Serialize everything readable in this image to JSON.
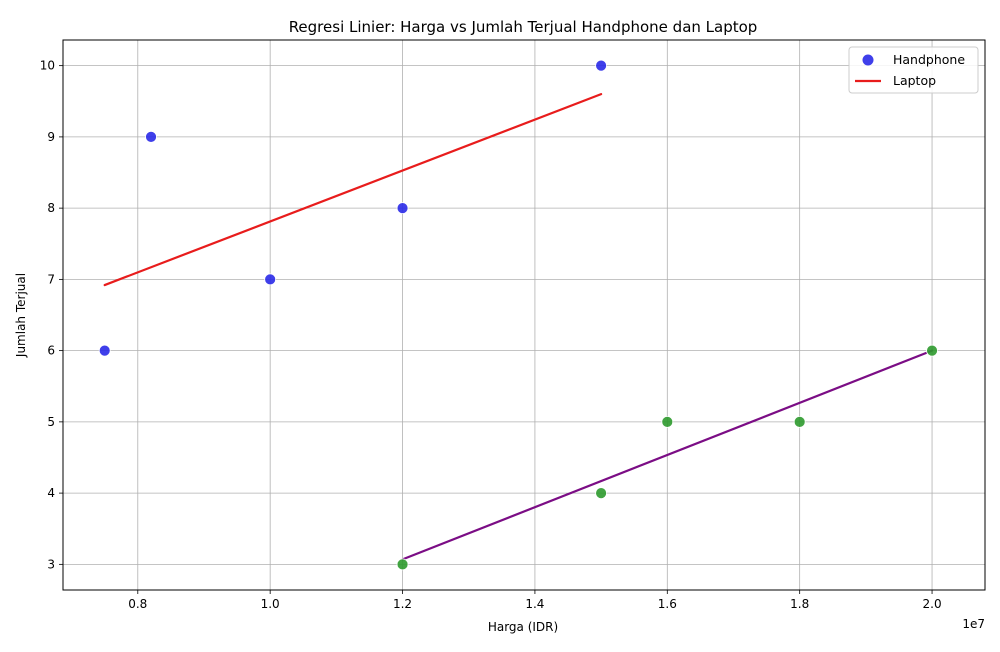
{
  "chart_data": {
    "type": "scatter",
    "title": "Regresi Linier: Harga vs Jumlah Terjual Handphone dan Laptop",
    "xlabel": "Harga (IDR)",
    "ylabel": "Jumlah Terjual",
    "x_offset_label": "1e7",
    "xlim": [
      6.87,
      20.8
    ],
    "ylim": [
      2.64,
      10.36
    ],
    "x_ticks": [
      0.8,
      1.0,
      1.2,
      1.4,
      1.6,
      1.8,
      2.0
    ],
    "x_tick_labels": [
      "0.8",
      "1.0",
      "1.2",
      "1.4",
      "1.6",
      "1.8",
      "2.0"
    ],
    "y_ticks": [
      3,
      4,
      5,
      6,
      7,
      8,
      9,
      10
    ],
    "y_tick_labels": [
      "3",
      "4",
      "5",
      "6",
      "7",
      "8",
      "9",
      "10"
    ],
    "grid": true,
    "legend_position": "top-right",
    "legend": [
      {
        "label": "Handphone",
        "kind": "marker",
        "color": "#2a2ae8"
      },
      {
        "label": "Laptop",
        "kind": "line",
        "color": "#e81c1c"
      }
    ],
    "scatter_series": [
      {
        "name": "Handphone",
        "color": "#2a2ae8",
        "x": [
          7.5,
          8.2,
          10.0,
          12.0,
          15.0
        ],
        "y": [
          6,
          9,
          7,
          8,
          10
        ]
      },
      {
        "color": "#2e9a2e",
        "x": [
          12.0,
          15.0,
          16.0,
          18.0,
          20.0
        ],
        "y": [
          3,
          4,
          5,
          5,
          6
        ]
      }
    ],
    "line_series": [
      {
        "name": "Laptop",
        "color": "#e81c1c",
        "x": [
          7.5,
          15.0
        ],
        "y": [
          6.92,
          9.6
        ]
      },
      {
        "color": "#7b0d85",
        "x": [
          12.0,
          20.0
        ],
        "y": [
          3.07,
          6.0
        ]
      }
    ]
  }
}
